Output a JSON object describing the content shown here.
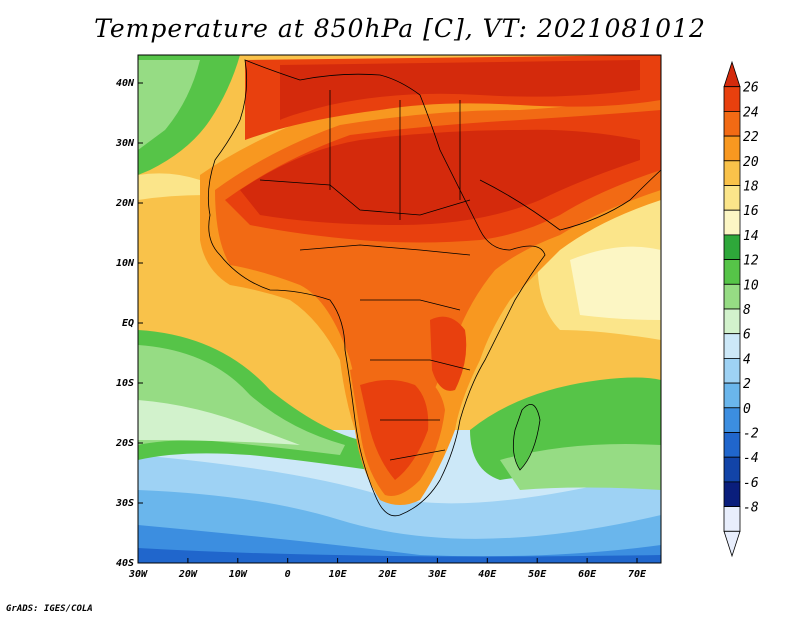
{
  "title": "Temperature at 850hPa [C], VT: 2021081012",
  "credit": "GrADS: IGES/COLA",
  "axes": {
    "lat_labels": [
      "40N",
      "30N",
      "20N",
      "10N",
      "EQ",
      "10S",
      "20S",
      "30S",
      "40S"
    ],
    "lon_labels": [
      "30W",
      "20W",
      "10W",
      "0",
      "10E",
      "20E",
      "30E",
      "40E",
      "50E",
      "60E",
      "70E"
    ]
  },
  "colorbar": {
    "labels": [
      "26",
      "24",
      "22",
      "20",
      "18",
      "16",
      "14",
      "12",
      "10",
      "8",
      "6",
      "4",
      "2",
      "0",
      "-2",
      "-4",
      "-6",
      "-8"
    ],
    "colors": [
      "#d42a0c",
      "#e8400e",
      "#f26a14",
      "#f89820",
      "#f9c24a",
      "#fbe58a",
      "#fcf6c4",
      "#2ea83a",
      "#56c448",
      "#96dc84",
      "#d2f2cc",
      "#cce8f8",
      "#9ed2f4",
      "#6ab6ec",
      "#3c8ee0",
      "#2066cc",
      "#1244a8",
      "#0a1e7c",
      "#e8eefc"
    ]
  }
}
